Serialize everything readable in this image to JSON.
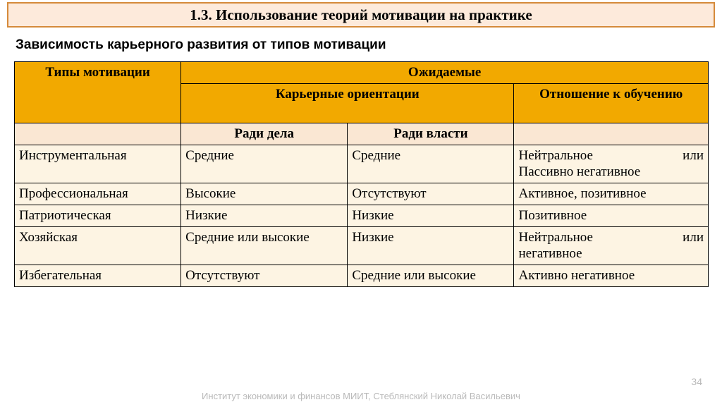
{
  "banner": {
    "title": "1.3. Использование теорий мотивации на практике"
  },
  "subtitle": "Зависимость карьерного развития от типов мотивации",
  "table": {
    "col_widths": [
      "24%",
      "24%",
      "24%",
      "28%"
    ],
    "header": {
      "top_left": "Типы мотивации",
      "top_right": "Ожидаемые",
      "mid_left": "Карьерные ориентации",
      "mid_right": "Отношение к обучению",
      "sub_left": "Ради дела",
      "sub_right": "Ради власти"
    },
    "rows": [
      {
        "type": "Инструментальная",
        "c1": "Средние",
        "c2": "Средние",
        "c3_mode": "justify2",
        "c3_a": "Нейтральное",
        "c3_b": "или",
        "c3_line2": "Пассивно негативное"
      },
      {
        "type": "Профессиональная",
        "c1": "Высокие",
        "c2": "Отсутствуют",
        "c3_mode": "plain",
        "c3": "Активное, позитивное"
      },
      {
        "type": "Патриотическая",
        "c1": "Низкие",
        "c2": "Низкие",
        "c3_mode": "plain",
        "c3": "Позитивное"
      },
      {
        "type": "Хозяйская",
        "c1": "Средние или высокие",
        "c2": "Низкие",
        "c3_mode": "justify2",
        "c3_a": "Нейтральное",
        "c3_b": "или",
        "c3_line2": "негативное"
      },
      {
        "type": "Избегательная",
        "c1": "Отсутствуют",
        "c2": "Средние или высокие",
        "c3_mode": "plain",
        "c3": "Активно негативное"
      }
    ]
  },
  "footer": "Институт экономики и финансов МИИТ, Стеблянский Николай Васильевич",
  "page_number": "34",
  "colors": {
    "banner_bg": "#fdeadb",
    "banner_border": "#d58a3a",
    "header_amber": "#f2a900",
    "header_light": "#fae7d3",
    "cell_bg": "#fdf4e3",
    "footer_color": "#b9b9b9"
  }
}
